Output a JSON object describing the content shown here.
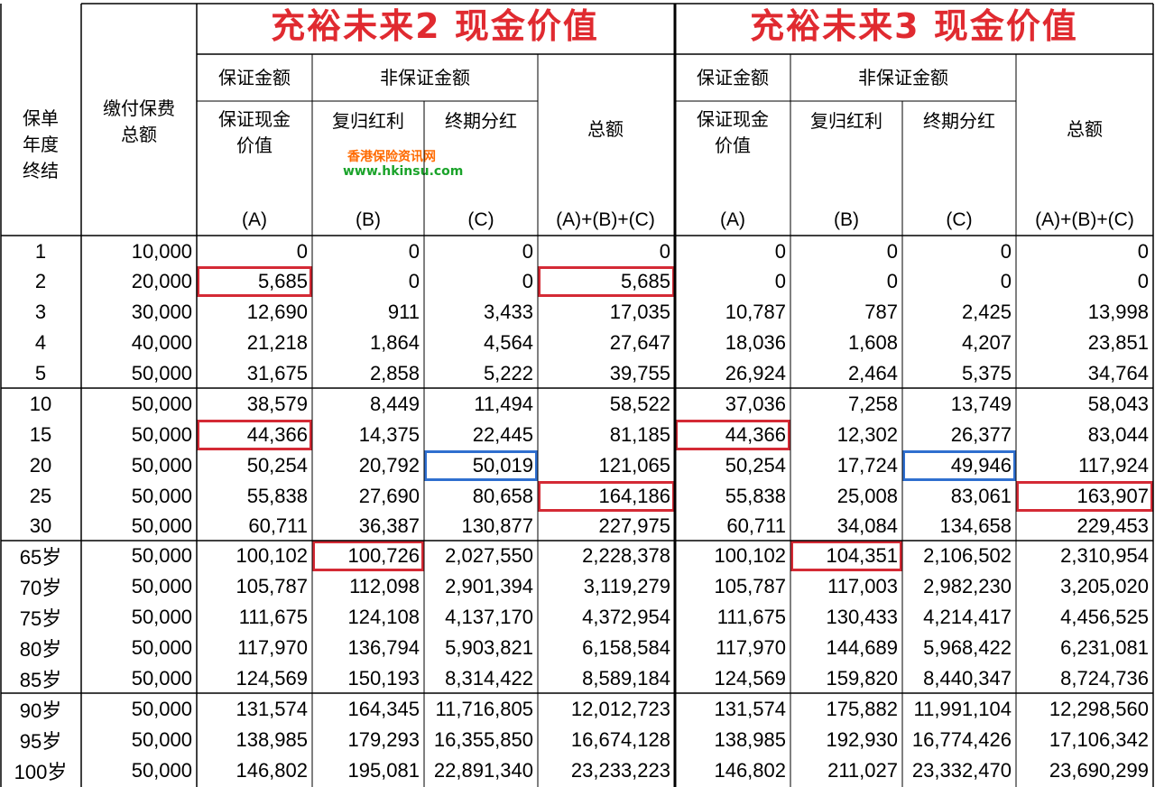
{
  "left_title": "充裕未来2 现金价值",
  "right_title": "充裕未来3 现金价值",
  "header": {
    "policy_year": "保单\n年度\n终结",
    "premium": "缴付保费\n总额",
    "guaranteed": "保证金额",
    "non_guaranteed": "非保证金额",
    "gcv": "保证现金\n价值",
    "reversionary": "复归红利",
    "terminal": "终期分红",
    "total": "总额",
    "a": "(A)",
    "b": "(B)",
    "c": "(C)",
    "sum": "(A)+(B)+(C)"
  },
  "watermark": {
    "line1": "香港保险资讯网",
    "line2": "www.hkinsu.com"
  },
  "colors": {
    "title": "#e02a30",
    "highlight_red": "#d42a35",
    "highlight_blue": "#2f6fcf"
  },
  "rows": [
    [
      "1",
      "10,000",
      "0",
      "0",
      "0",
      "0",
      "0",
      "0",
      "0",
      "0"
    ],
    [
      "2",
      "20,000",
      "5,685",
      "0",
      "0",
      "5,685",
      "0",
      "0",
      "0",
      "0"
    ],
    [
      "3",
      "30,000",
      "12,690",
      "911",
      "3,433",
      "17,035",
      "10,787",
      "787",
      "2,425",
      "13,998"
    ],
    [
      "4",
      "40,000",
      "21,218",
      "1,864",
      "4,564",
      "27,647",
      "18,036",
      "1,608",
      "4,207",
      "23,851"
    ],
    [
      "5",
      "50,000",
      "31,675",
      "2,858",
      "5,222",
      "39,755",
      "26,924",
      "2,464",
      "5,375",
      "34,764"
    ],
    [
      "10",
      "50,000",
      "38,579",
      "8,449",
      "11,494",
      "58,522",
      "37,036",
      "7,258",
      "13,749",
      "58,043"
    ],
    [
      "15",
      "50,000",
      "44,366",
      "14,375",
      "22,445",
      "81,185",
      "44,366",
      "12,302",
      "26,377",
      "83,044"
    ],
    [
      "20",
      "50,000",
      "50,254",
      "20,792",
      "50,019",
      "121,065",
      "50,254",
      "17,724",
      "49,946",
      "117,924"
    ],
    [
      "25",
      "50,000",
      "55,838",
      "27,690",
      "80,658",
      "164,186",
      "55,838",
      "25,008",
      "83,061",
      "163,907"
    ],
    [
      "30",
      "50,000",
      "60,711",
      "36,387",
      "130,877",
      "227,975",
      "60,711",
      "34,084",
      "134,658",
      "229,453"
    ],
    [
      "65岁",
      "50,000",
      "100,102",
      "100,726",
      "2,027,550",
      "2,228,378",
      "100,102",
      "104,351",
      "2,106,502",
      "2,310,954"
    ],
    [
      "70岁",
      "50,000",
      "105,787",
      "112,098",
      "2,901,394",
      "3,119,279",
      "105,787",
      "117,003",
      "2,982,230",
      "3,205,020"
    ],
    [
      "75岁",
      "50,000",
      "111,675",
      "124,108",
      "4,137,170",
      "4,372,954",
      "111,675",
      "130,433",
      "4,214,417",
      "4,456,525"
    ],
    [
      "80岁",
      "50,000",
      "117,970",
      "136,794",
      "5,903,821",
      "6,158,584",
      "117,970",
      "144,689",
      "5,968,422",
      "6,231,081"
    ],
    [
      "85岁",
      "50,000",
      "124,569",
      "150,193",
      "8,314,422",
      "8,589,184",
      "124,569",
      "159,820",
      "8,440,347",
      "8,724,736"
    ],
    [
      "90岁",
      "50,000",
      "131,574",
      "164,345",
      "11,716,805",
      "12,012,723",
      "131,574",
      "175,882",
      "11,991,104",
      "12,298,560"
    ],
    [
      "95岁",
      "50,000",
      "138,985",
      "179,293",
      "16,355,850",
      "16,674,128",
      "138,985",
      "192,930",
      "16,774,426",
      "17,106,342"
    ],
    [
      "100岁",
      "50,000",
      "146,802",
      "195,081",
      "22,891,340",
      "23,233,223",
      "146,802",
      "211,027",
      "23,332,470",
      "23,690,299"
    ]
  ],
  "highlights": {
    "red": [
      [
        1,
        2
      ],
      [
        1,
        5
      ],
      [
        6,
        2
      ],
      [
        6,
        6
      ],
      [
        8,
        5
      ],
      [
        8,
        9
      ],
      [
        10,
        3
      ],
      [
        10,
        7
      ]
    ],
    "blue": [
      [
        7,
        4
      ],
      [
        7,
        8
      ]
    ]
  }
}
